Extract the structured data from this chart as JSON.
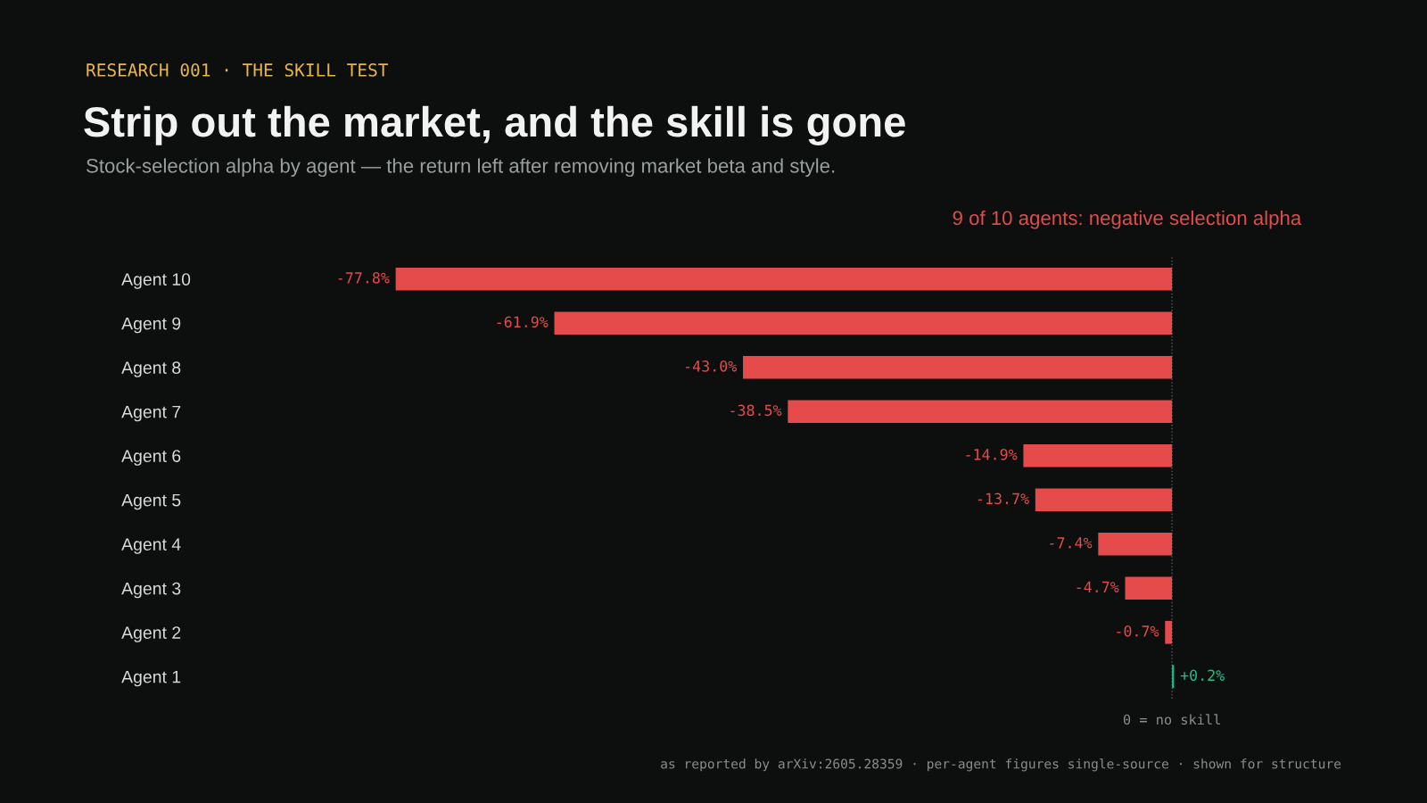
{
  "chart_data": {
    "type": "bar",
    "orientation": "horizontal",
    "subtitle": "RESEARCH 001 · THE SKILL TEST",
    "title": "Strip out the market, and the skill is gone",
    "xlabel": "Stock-selection alpha by agent — the return left after removing market beta and style.",
    "categories": [
      "Agent 10",
      "Agent 9",
      "Agent 8",
      "Agent 7",
      "Agent 6",
      "Agent 5",
      "Agent 4",
      "Agent 3",
      "Agent 2",
      "Agent 1"
    ],
    "values": [
      -77.8,
      -61.9,
      -43.0,
      -38.5,
      -14.9,
      -13.7,
      -7.4,
      -4.7,
      -0.7,
      0.2
    ],
    "colors": [
      "#e54b4b",
      "#e54b4b",
      "#e54b4b",
      "#e54b4b",
      "#e54b4b",
      "#e54b4b",
      "#e54b4b",
      "#e54b4b",
      "#e54b4b",
      "#1fbf8f"
    ],
    "value_labels": [
      "-77.8%",
      "-61.9%",
      "-43.0%",
      "-38.5%",
      "-14.9%",
      "-13.7%",
      "-7.4%",
      "-4.7%",
      "-0.7%",
      "+0.2%"
    ],
    "tick_labels": "y",
    "grid": false,
    "ref_lines": [
      {
        "axis": "x",
        "value": 0,
        "label": "0 = no skill",
        "color": "#555a58",
        "line_style": "dotted"
      }
    ],
    "annotations": [
      "9 of 10 agents: negative selection alpha",
      "as reported by arXiv:2605.28359 · per-agent figures single-source · shown for structure"
    ]
  }
}
